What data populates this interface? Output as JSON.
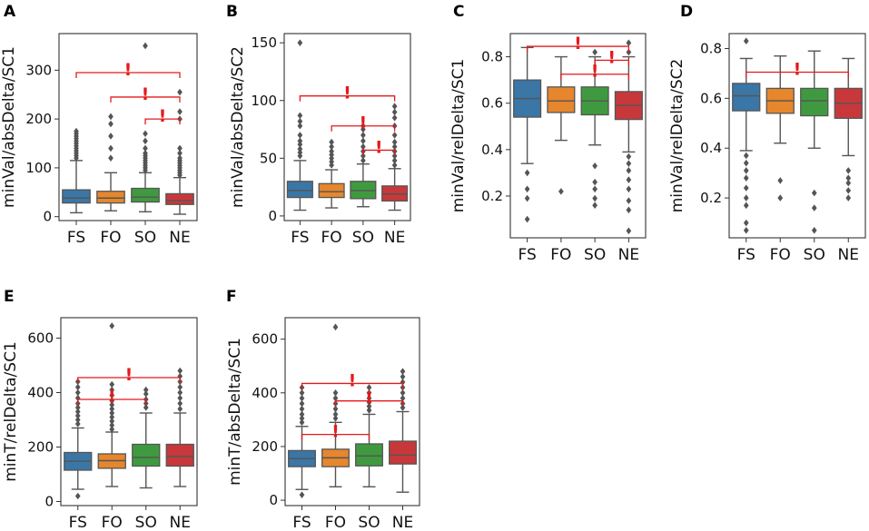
{
  "figure": {
    "categories": [
      "FS",
      "FO",
      "SO",
      "NE"
    ],
    "colors": {
      "FS": "#3a76a6",
      "FO": "#e6862d",
      "SO": "#3f9a3f",
      "NE": "#c8383a",
      "whisker": "#555555",
      "outlier": "#555555",
      "bracket": "#e41a1c",
      "frame": "#333333"
    },
    "significance_mark": "!"
  },
  "chart_data": [
    {
      "panel": "A",
      "type": "box",
      "ylabel": "minVal/absDelta/SC1",
      "ylim": [
        -8,
        375
      ],
      "yticks": [
        0,
        100,
        200,
        300
      ],
      "boxes": [
        {
          "category": "FS",
          "min": 8,
          "q1": 28,
          "median": 38,
          "q3": 55,
          "max": 115,
          "outliers": [
            120,
            125,
            130,
            135,
            140,
            145,
            150,
            155,
            160,
            165,
            170,
            175
          ]
        },
        {
          "category": "FO",
          "min": 12,
          "q1": 28,
          "median": 38,
          "q3": 52,
          "max": 90,
          "outliers": [
            120,
            140,
            165,
            190,
            205
          ]
        },
        {
          "category": "SO",
          "min": 10,
          "q1": 30,
          "median": 40,
          "q3": 58,
          "max": 90,
          "outliers": [
            95,
            100,
            105,
            110,
            115,
            120,
            125,
            130,
            140,
            155,
            170,
            350
          ]
        },
        {
          "category": "NE",
          "min": 5,
          "q1": 25,
          "median": 33,
          "q3": 47,
          "max": 80,
          "outliers": [
            85,
            90,
            95,
            100,
            105,
            110,
            115,
            120,
            130,
            140,
            200,
            215,
            255
          ]
        }
      ],
      "brackets": [
        {
          "from": "FS",
          "to": "NE",
          "y": 295
        },
        {
          "from": "FO",
          "to": "NE",
          "y": 245
        },
        {
          "from": "SO",
          "to": "NE",
          "y": 200
        }
      ]
    },
    {
      "panel": "B",
      "type": "box",
      "ylabel": "minVal/absDelta/SC2",
      "ylim": [
        -4,
        158
      ],
      "yticks": [
        0,
        50,
        100,
        150
      ],
      "boxes": [
        {
          "category": "FS",
          "min": 5,
          "q1": 16,
          "median": 22,
          "q3": 30,
          "max": 48,
          "outliers": [
            52,
            55,
            58,
            62,
            65,
            70,
            78,
            82,
            87,
            150
          ]
        },
        {
          "category": "FO",
          "min": 7,
          "q1": 16,
          "median": 21,
          "q3": 28,
          "max": 40,
          "outliers": [
            44,
            47,
            50,
            53,
            56,
            60,
            64
          ]
        },
        {
          "category": "SO",
          "min": 8,
          "q1": 15,
          "median": 22,
          "q3": 30,
          "max": 45,
          "outliers": [
            48,
            52,
            56,
            60,
            65,
            70,
            75,
            78
          ]
        },
        {
          "category": "NE",
          "min": 5,
          "q1": 13,
          "median": 19,
          "q3": 26,
          "max": 41,
          "outliers": [
            44,
            48,
            52,
            56,
            60,
            64,
            70,
            78,
            85,
            90,
            95
          ]
        }
      ],
      "brackets": [
        {
          "from": "FS",
          "to": "NE",
          "y": 104
        },
        {
          "from": "FO",
          "to": "NE",
          "y": 78
        },
        {
          "from": "SO",
          "to": "NE",
          "y": 57
        }
      ]
    },
    {
      "panel": "C",
      "type": "box",
      "ylabel": "minVal/relDelta/SC1",
      "ylim": [
        0.02,
        0.9
      ],
      "yticks": [
        0.2,
        0.4,
        0.6,
        0.8
      ],
      "boxes": [
        {
          "category": "FS",
          "min": 0.34,
          "q1": 0.54,
          "median": 0.62,
          "q3": 0.7,
          "max": 0.84,
          "outliers": [
            0.1,
            0.19,
            0.23,
            0.3
          ]
        },
        {
          "category": "FO",
          "min": 0.44,
          "q1": 0.56,
          "median": 0.61,
          "q3": 0.67,
          "max": 0.8,
          "outliers": [
            0.22
          ]
        },
        {
          "category": "SO",
          "min": 0.42,
          "q1": 0.55,
          "median": 0.61,
          "q3": 0.67,
          "max": 0.8,
          "outliers": [
            0.16,
            0.19,
            0.23,
            0.26,
            0.33,
            0.82
          ]
        },
        {
          "category": "NE",
          "min": 0.39,
          "q1": 0.53,
          "median": 0.59,
          "q3": 0.65,
          "max": 0.8,
          "outliers": [
            0.05,
            0.14,
            0.18,
            0.23,
            0.27,
            0.31,
            0.34,
            0.37,
            0.82,
            0.86
          ]
        }
      ],
      "brackets": [
        {
          "from": "FS",
          "to": "NE",
          "y": 0.845
        },
        {
          "from": "SO",
          "to": "NE",
          "y": 0.785
        },
        {
          "from": "FO",
          "to": "NE",
          "y": 0.725
        }
      ]
    },
    {
      "panel": "D",
      "type": "box",
      "ylabel": "minVal/relDelta/SC2",
      "ylim": [
        0.04,
        0.86
      ],
      "yticks": [
        0.2,
        0.4,
        0.6,
        0.8
      ],
      "boxes": [
        {
          "category": "FS",
          "min": 0.39,
          "q1": 0.55,
          "median": 0.61,
          "q3": 0.66,
          "max": 0.76,
          "outliers": [
            0.07,
            0.1,
            0.17,
            0.2,
            0.24,
            0.28,
            0.31,
            0.34,
            0.37,
            0.83
          ]
        },
        {
          "category": "FO",
          "min": 0.42,
          "q1": 0.54,
          "median": 0.59,
          "q3": 0.64,
          "max": 0.77,
          "outliers": [
            0.2,
            0.27
          ]
        },
        {
          "category": "SO",
          "min": 0.4,
          "q1": 0.53,
          "median": 0.59,
          "q3": 0.64,
          "max": 0.79,
          "outliers": [
            0.07,
            0.16,
            0.22
          ]
        },
        {
          "category": "NE",
          "min": 0.37,
          "q1": 0.52,
          "median": 0.58,
          "q3": 0.64,
          "max": 0.76,
          "outliers": [
            0.2,
            0.23,
            0.26,
            0.28,
            0.31
          ]
        }
      ],
      "brackets": [
        {
          "from": "FS",
          "to": "NE",
          "y": 0.705
        }
      ]
    },
    {
      "panel": "E",
      "type": "box",
      "ylabel": "minT/relDelta/SC1",
      "ylim": [
        -15,
        675
      ],
      "yticks": [
        0,
        200,
        400,
        600
      ],
      "boxes": [
        {
          "category": "FS",
          "min": 45,
          "q1": 115,
          "median": 148,
          "q3": 180,
          "max": 270,
          "outliers": [
            20,
            285,
            300,
            315,
            330,
            345,
            360,
            380,
            400,
            420,
            440
          ]
        },
        {
          "category": "FO",
          "min": 55,
          "q1": 122,
          "median": 150,
          "q3": 175,
          "max": 255,
          "outliers": [
            265,
            280,
            295,
            310,
            325,
            340,
            355,
            370,
            390,
            410,
            430,
            645
          ]
        },
        {
          "category": "SO",
          "min": 50,
          "q1": 130,
          "median": 162,
          "q3": 210,
          "max": 325,
          "outliers": [
            345,
            360,
            375,
            395,
            410
          ]
        },
        {
          "category": "NE",
          "min": 55,
          "q1": 130,
          "median": 165,
          "q3": 210,
          "max": 325,
          "outliers": [
            340,
            360,
            380,
            400,
            420,
            440,
            460,
            480
          ]
        }
      ],
      "brackets": [
        {
          "from": "FS",
          "to": "NE",
          "y": 455
        },
        {
          "from": "FS",
          "to": "SO",
          "y": 375
        }
      ]
    },
    {
      "panel": "F",
      "type": "box",
      "ylabel": "minT/absDelta/SC1",
      "ylim": [
        -20,
        680
      ],
      "yticks": [
        0,
        200,
        400,
        600
      ],
      "boxes": [
        {
          "category": "FS",
          "min": 40,
          "q1": 125,
          "median": 155,
          "q3": 185,
          "max": 275,
          "outliers": [
            20,
            290,
            305,
            320,
            340,
            360,
            380,
            400,
            420
          ]
        },
        {
          "category": "FO",
          "min": 50,
          "q1": 125,
          "median": 158,
          "q3": 190,
          "max": 290,
          "outliers": [
            305,
            320,
            340,
            360,
            380,
            400,
            645
          ]
        },
        {
          "category": "SO",
          "min": 50,
          "q1": 128,
          "median": 165,
          "q3": 210,
          "max": 320,
          "outliers": [
            335,
            350,
            365,
            380,
            400,
            420
          ]
        },
        {
          "category": "NE",
          "min": 30,
          "q1": 135,
          "median": 168,
          "q3": 220,
          "max": 330,
          "outliers": [
            345,
            360,
            380,
            400,
            420,
            440,
            460,
            480
          ]
        }
      ],
      "brackets": [
        {
          "from": "FS",
          "to": "NE",
          "y": 435
        },
        {
          "from": "FO",
          "to": "NE",
          "y": 370
        },
        {
          "from": "FS",
          "to": "SO",
          "y": 245
        }
      ]
    }
  ]
}
